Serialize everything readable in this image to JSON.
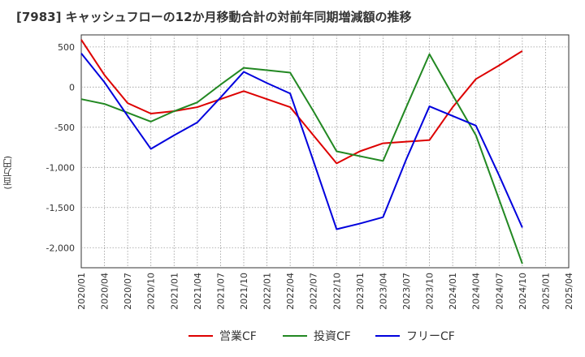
{
  "chart_data": {
    "type": "line",
    "title": "[7983]  キャッシュフローの12か月移動合計の対前年同期増減額の推移",
    "xlabel": "",
    "ylabel": "(百万円)",
    "x": [
      "2020/01",
      "2020/04",
      "2020/07",
      "2020/10",
      "2021/01",
      "2021/04",
      "2021/07",
      "2021/10",
      "2022/01",
      "2022/04",
      "2022/07",
      "2022/10",
      "2023/01",
      "2023/04",
      "2023/07",
      "2023/10",
      "2024/01",
      "2024/04",
      "2024/07",
      "2024/10",
      "2025/01",
      "2025/04"
    ],
    "ylim": [
      -2250,
      650
    ],
    "yticks": [
      500,
      0,
      -500,
      -1000,
      -1500,
      -2000
    ],
    "ytick_labels": [
      "500",
      "0",
      "-500",
      "-1,000",
      "-1,500",
      "-2,000"
    ],
    "grid": true,
    "legend_position": "bottom",
    "series": [
      {
        "name": "営業CF",
        "color": "#dd0000",
        "values": [
          590,
          150,
          -200,
          -330,
          -300,
          -250,
          -150,
          -50,
          -150,
          -250,
          -600,
          -950,
          -800,
          -700,
          -680,
          -660,
          -250,
          100,
          270,
          450,
          null,
          null
        ]
      },
      {
        "name": "投資CF",
        "color": "#228822",
        "values": [
          -150,
          -210,
          -320,
          -430,
          -300,
          -190,
          30,
          240,
          210,
          180,
          -300,
          -800,
          -860,
          -920,
          -250,
          410,
          -100,
          -600,
          -1400,
          -2200,
          null,
          null
        ]
      },
      {
        "name": "フリーCF",
        "color": "#0000dd",
        "values": [
          420,
          60,
          -360,
          -770,
          -600,
          -440,
          -130,
          190,
          50,
          -80,
          -920,
          -1770,
          -1700,
          -1620,
          -900,
          -240,
          -360,
          -480,
          -1100,
          -1750,
          null,
          null
        ]
      }
    ]
  }
}
